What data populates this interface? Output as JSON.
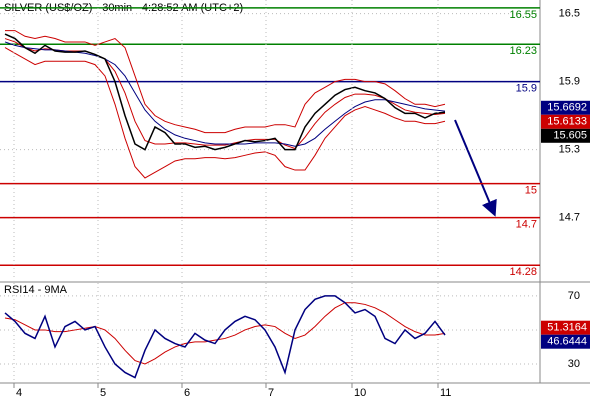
{
  "chart_data": [
    {
      "type": "line",
      "title": "SILVER (US$/OZ) - 30min - 4:28:52 AM (UTC+2)",
      "x": [
        0.5,
        1.5,
        2.5,
        3.5,
        4.5,
        5.5,
        6.5,
        7.5,
        8.5,
        9.5,
        10.5,
        11.5,
        12.5,
        13.5,
        14.5,
        15.5,
        16.5,
        17.5,
        18.5,
        19.5,
        20.5,
        21.5,
        22.5,
        23.5,
        24.5,
        25.5,
        26.5,
        27.5,
        28.5,
        29.5,
        30.5,
        31.5,
        32.5,
        33.5,
        34.5,
        35.5,
        36.5,
        37.5,
        38.5,
        39.5,
        40.5,
        41.5,
        42.5,
        43.5,
        44.5
      ],
      "xlim": [
        0,
        54
      ],
      "ylim": [
        14.15,
        16.62
      ],
      "yticks": [
        16.5,
        15.9,
        15.3,
        14.7
      ],
      "grid": true,
      "series": [
        {
          "color": "#cc0000",
          "values": [
            16.35,
            16.35,
            16.3,
            16.28,
            16.3,
            16.28,
            16.25,
            16.25,
            16.25,
            16.22,
            16.25,
            16.28,
            16.2,
            15.95,
            15.7,
            15.6,
            15.55,
            15.52,
            15.5,
            15.48,
            15.45,
            15.45,
            15.45,
            15.48,
            15.5,
            15.5,
            15.5,
            15.52,
            15.52,
            15.5,
            15.7,
            15.8,
            15.85,
            15.9,
            15.92,
            15.92,
            15.9,
            15.9,
            15.88,
            15.82,
            15.75,
            15.7,
            15.7,
            15.68,
            15.7
          ]
        },
        {
          "color": "#cc0000",
          "values": [
            16.2,
            16.15,
            16.1,
            16.05,
            16.08,
            16.08,
            16.08,
            16.08,
            16.08,
            16.05,
            15.95,
            15.7,
            15.4,
            15.15,
            15.05,
            15.1,
            15.15,
            15.2,
            15.22,
            15.22,
            15.23,
            15.23,
            15.22,
            15.23,
            15.25,
            15.27,
            15.28,
            15.25,
            15.15,
            15.12,
            15.12,
            15.25,
            15.4,
            15.5,
            15.6,
            15.65,
            15.68,
            15.65,
            15.62,
            15.58,
            15.55,
            15.55,
            15.53,
            15.53,
            15.55
          ]
        },
        {
          "color": "#cc0000",
          "values": [
            16.28,
            16.25,
            16.2,
            16.17,
            16.19,
            16.18,
            16.17,
            16.17,
            16.17,
            16.14,
            16.1,
            15.99,
            15.8,
            15.55,
            15.38,
            15.35,
            15.35,
            15.36,
            15.36,
            15.35,
            15.34,
            15.34,
            15.34,
            15.36,
            15.38,
            15.39,
            15.39,
            15.39,
            15.34,
            15.31,
            15.41,
            15.53,
            15.63,
            15.7,
            15.76,
            15.79,
            15.79,
            15.78,
            15.75,
            15.7,
            15.65,
            15.63,
            15.62,
            15.61,
            15.62
          ]
        },
        {
          "color": "#000080",
          "values": [
            16.25,
            16.22,
            16.2,
            16.19,
            16.18,
            16.18,
            16.17,
            16.16,
            16.15,
            16.13,
            16.1,
            16.05,
            15.95,
            15.8,
            15.65,
            15.55,
            15.48,
            15.43,
            15.4,
            15.38,
            15.36,
            15.35,
            15.35,
            15.35,
            15.35,
            15.36,
            15.36,
            15.36,
            15.35,
            15.33,
            15.35,
            15.4,
            15.48,
            15.55,
            15.62,
            15.68,
            15.72,
            15.74,
            15.74,
            15.72,
            15.7,
            15.68,
            15.66,
            15.65,
            15.64
          ]
        },
        {
          "color": "#000000",
          "values": [
            16.32,
            16.28,
            16.2,
            16.15,
            16.22,
            16.17,
            16.16,
            16.16,
            16.17,
            16.14,
            16.1,
            15.9,
            15.6,
            15.35,
            15.3,
            15.5,
            15.45,
            15.35,
            15.35,
            15.32,
            15.33,
            15.3,
            15.32,
            15.35,
            15.38,
            15.37,
            15.38,
            15.4,
            15.3,
            15.3,
            15.5,
            15.62,
            15.7,
            15.78,
            15.83,
            15.85,
            15.82,
            15.8,
            15.75,
            15.67,
            15.62,
            15.62,
            15.58,
            15.62,
            15.63
          ]
        }
      ],
      "levels": [
        {
          "value": 16.55,
          "color": "#008000"
        },
        {
          "value": 16.23,
          "color": "#008000"
        },
        {
          "value": 15.9,
          "color": "#000080"
        },
        {
          "value": 15,
          "color": "#cc0000"
        },
        {
          "value": 14.7,
          "color": "#cc0000"
        },
        {
          "value": 14.28,
          "color": "#cc0000"
        }
      ],
      "last_values": [
        {
          "value": 15.6692,
          "color": "#000080"
        },
        {
          "value": 15.6133,
          "color": "#cc0000"
        },
        {
          "value": 15.605,
          "color": "#000000"
        }
      ]
    },
    {
      "type": "line",
      "title": "RSI14 - 9MA",
      "x": [
        0.5,
        1.5,
        2.5,
        3.5,
        4.5,
        5.5,
        6.5,
        7.5,
        8.5,
        9.5,
        10.5,
        11.5,
        12.5,
        13.5,
        14.5,
        15.5,
        16.5,
        17.5,
        18.5,
        19.5,
        20.5,
        21.5,
        22.5,
        23.5,
        24.5,
        25.5,
        26.5,
        27.5,
        28.5,
        29.5,
        30.5,
        31.5,
        32.5,
        33.5,
        34.5,
        35.5,
        36.5,
        37.5,
        38.5,
        39.5,
        40.5,
        41.5,
        42.5,
        43.5,
        44.5
      ],
      "xlim": [
        0,
        54
      ],
      "ylim": [
        18.8,
        77.6
      ],
      "yticks": [
        70,
        50,
        30
      ],
      "grid": true,
      "xticks": [
        {
          "value": 1.4,
          "label": "4"
        },
        {
          "value": 9.8,
          "label": "5"
        },
        {
          "value": 18.2,
          "label": "6"
        },
        {
          "value": 26.6,
          "label": "7"
        },
        {
          "value": 35.2,
          "label": "10"
        },
        {
          "value": 43.8,
          "label": "11"
        }
      ],
      "series": [
        {
          "color": "#cc0000",
          "values": [
            57,
            56,
            53,
            50,
            50,
            49,
            49,
            50,
            51,
            52,
            50,
            45,
            38,
            32,
            30,
            33,
            37,
            40,
            42,
            43,
            43,
            44,
            45,
            47,
            50,
            52,
            53,
            52,
            48,
            45,
            47,
            52,
            58,
            63,
            66,
            66,
            65,
            63,
            60,
            56,
            52,
            49,
            47,
            47,
            48
          ]
        },
        {
          "color": "#000080",
          "values": [
            60,
            55,
            48,
            45,
            58,
            40,
            52,
            55,
            50,
            52,
            40,
            30,
            25,
            22,
            38,
            50,
            45,
            42,
            40,
            48,
            44,
            42,
            50,
            55,
            58,
            56,
            50,
            40,
            25,
            50,
            62,
            68,
            70,
            70,
            66,
            60,
            62,
            58,
            45,
            42,
            50,
            45,
            48,
            55,
            47
          ]
        }
      ],
      "last_values": [
        {
          "value": 51.3164,
          "color": "#cc0000"
        },
        {
          "value": 46.6444,
          "color": "#000080"
        }
      ]
    }
  ]
}
